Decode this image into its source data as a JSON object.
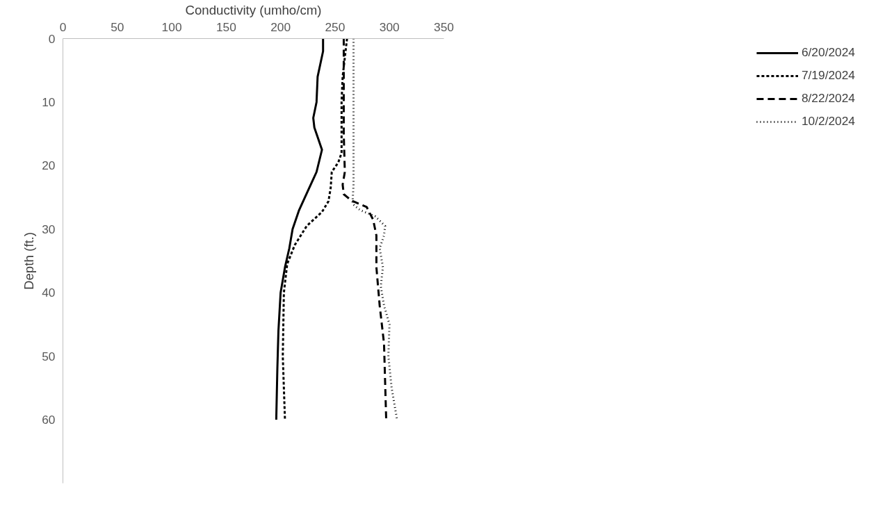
{
  "chart_data": {
    "type": "line",
    "xlabel": "Conductivity (umho/cm)",
    "ylabel": "Depth (ft.)",
    "xlim": [
      0,
      350
    ],
    "xticks": [
      0,
      50,
      100,
      150,
      200,
      250,
      300,
      350
    ],
    "ylim": [
      70,
      0
    ],
    "yticks": [
      0,
      10,
      20,
      30,
      40,
      50,
      60
    ],
    "grid": false,
    "legend": "right",
    "marker": "none",
    "series": [
      {
        "name": "6/20/2024",
        "color": "#000000",
        "line_style": "solid",
        "x": [
          239,
          239,
          234,
          233,
          230,
          231,
          238,
          233,
          225,
          217,
          211,
          208,
          204,
          200,
          198,
          197,
          196
        ],
        "values": [
          0,
          2,
          6,
          10,
          12.5,
          14,
          17.5,
          21,
          24,
          27,
          30,
          33,
          36,
          40,
          46,
          52,
          60
        ]
      },
      {
        "name": "7/19/2024",
        "color": "#000000",
        "line_style": "dashed",
        "x": [
          261,
          259,
          257,
          256,
          256,
          256,
          253,
          247,
          246,
          244,
          238,
          224,
          213,
          206,
          203,
          202,
          204
        ],
        "values": [
          0,
          3,
          6,
          10,
          15,
          18,
          19.5,
          21,
          23.5,
          25.6,
          27.3,
          29.5,
          32.5,
          35.5,
          40,
          50,
          60
        ]
      },
      {
        "name": "8/22/2024",
        "color": "#000000",
        "line_style": "dashed",
        "x": [
          258,
          258,
          258,
          259,
          257,
          258,
          265,
          279,
          285,
          288,
          288,
          291,
          295,
          296,
          297
        ],
        "values": [
          0,
          8,
          15,
          21,
          23,
          24.5,
          25.5,
          26.5,
          28.5,
          31,
          36,
          42,
          48,
          54,
          60
        ]
      },
      {
        "name": "10/2/2024",
        "color": "#000000",
        "line_style": "dotted",
        "x": [
          267,
          267,
          267,
          266,
          273,
          287,
          296,
          295,
          291,
          294,
          292,
          295,
          300,
          299,
          302,
          307
        ],
        "values": [
          0,
          10,
          23,
          26,
          27,
          28,
          29.5,
          31,
          33,
          36,
          39,
          42,
          45,
          50,
          55,
          60
        ]
      }
    ]
  }
}
